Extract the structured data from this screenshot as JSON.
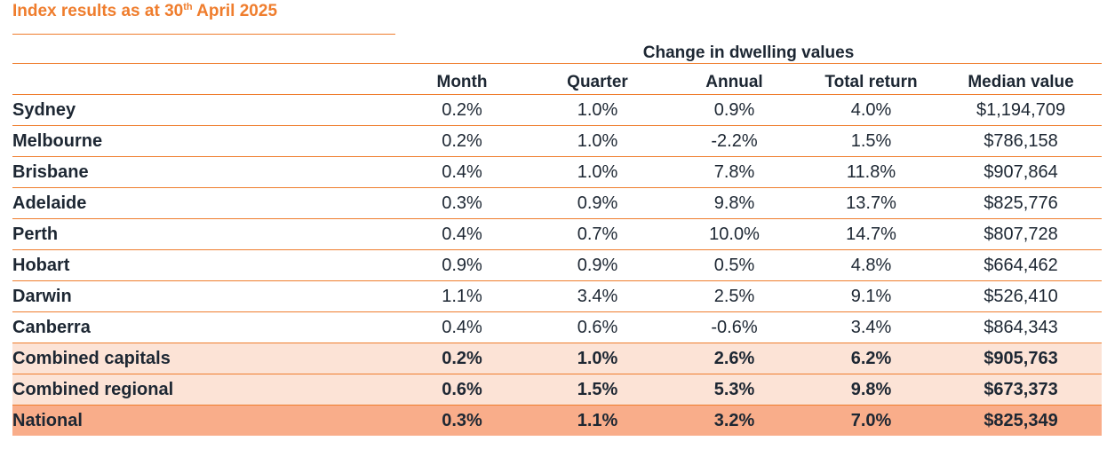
{
  "title": {
    "main": "Index results as at 30",
    "sup": "th",
    "rest": " April 2025"
  },
  "header": {
    "group_label": "Change in dwelling values",
    "columns": [
      "Month",
      "Quarter",
      "Annual",
      "Total return",
      "Median value"
    ]
  },
  "rows": [
    {
      "region": "Sydney",
      "month": "0.2%",
      "quarter": "1.0%",
      "annual": "0.9%",
      "total_return": "4.0%",
      "median": "$1,194,709"
    },
    {
      "region": "Melbourne",
      "month": "0.2%",
      "quarter": "1.0%",
      "annual": "-2.2%",
      "total_return": "1.5%",
      "median": "$786,158"
    },
    {
      "region": "Brisbane",
      "month": "0.4%",
      "quarter": "1.0%",
      "annual": "7.8%",
      "total_return": "11.8%",
      "median": "$907,864"
    },
    {
      "region": "Adelaide",
      "month": "0.3%",
      "quarter": "0.9%",
      "annual": "9.8%",
      "total_return": "13.7%",
      "median": "$825,776"
    },
    {
      "region": "Perth",
      "month": "0.4%",
      "quarter": "0.7%",
      "annual": "10.0%",
      "total_return": "14.7%",
      "median": "$807,728"
    },
    {
      "region": "Hobart",
      "month": "0.9%",
      "quarter": "0.9%",
      "annual": "0.5%",
      "total_return": "4.8%",
      "median": "$664,462"
    },
    {
      "region": "Darwin",
      "month": "1.1%",
      "quarter": "3.4%",
      "annual": "2.5%",
      "total_return": "9.1%",
      "median": "$526,410"
    },
    {
      "region": "Canberra",
      "month": "0.4%",
      "quarter": "0.6%",
      "annual": "-0.6%",
      "total_return": "3.4%",
      "median": "$864,343"
    },
    {
      "region": "Combined capitals",
      "month": "0.2%",
      "quarter": "1.0%",
      "annual": "2.6%",
      "total_return": "6.2%",
      "median": "$905,763"
    },
    {
      "region": "Combined regional",
      "month": "0.6%",
      "quarter": "1.5%",
      "annual": "5.3%",
      "total_return": "9.8%",
      "median": "$673,373"
    },
    {
      "region": "National",
      "month": "0.3%",
      "quarter": "1.1%",
      "annual": "3.2%",
      "total_return": "7.0%",
      "median": "$825,349"
    }
  ],
  "colors": {
    "accent": "#ef7d2d",
    "combined_bg": "#fce3d6",
    "national_bg": "#f9ad8a",
    "text": "#1d2733"
  }
}
